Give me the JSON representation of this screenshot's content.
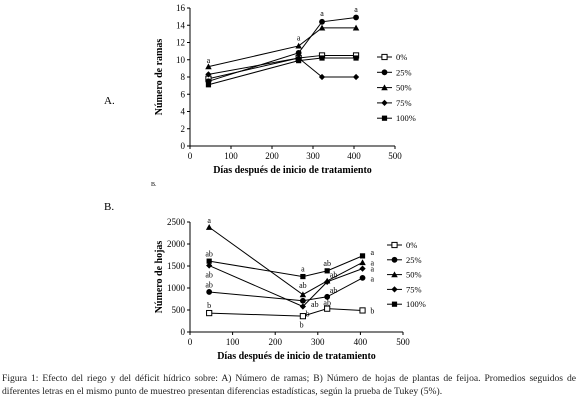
{
  "figure": {
    "caption": "Figura 1: Efecto del riego y del déficit hídrico sobre: A) Número de ramas; B) Número de hojas de plantas de feijoa. Promedios seguidos de diferentes letras en el mismo punto de muestreo presentan diferencias estadísticas, según la prueba de Tukey (5%)."
  },
  "chart_data": [
    {
      "type": "line",
      "panel_label": "A.",
      "xlabel": "Días después de inicio de tratamiento",
      "ylabel": "Número de ramas",
      "xlim": [
        0,
        500
      ],
      "ylim": [
        0,
        16
      ],
      "xticks": [
        0,
        100,
        200,
        300,
        400,
        500
      ],
      "yticks": [
        0,
        2,
        4,
        6,
        8,
        10,
        12,
        14,
        16
      ],
      "grid": false,
      "legend_position": "right",
      "x": [
        45,
        265,
        322,
        405
      ],
      "series": [
        {
          "name": "0%",
          "marker": "square-open",
          "values": [
            7.8,
            10.2,
            10.5,
            10.5
          ]
        },
        {
          "name": "25%",
          "marker": "circle",
          "values": [
            7.5,
            10.8,
            14.4,
            14.9
          ]
        },
        {
          "name": "50%",
          "marker": "triangle",
          "values": [
            9.2,
            11.6,
            13.7,
            13.7
          ]
        },
        {
          "name": "75%",
          "marker": "diamond",
          "values": [
            8.3,
            10.2,
            8.0,
            8.0
          ]
        },
        {
          "name": "100%",
          "marker": "square",
          "values": [
            7.1,
            9.9,
            10.2,
            10.2
          ]
        }
      ],
      "annotations": [
        {
          "text": "a",
          "x": 45,
          "y": 10.0
        },
        {
          "text": "a",
          "x": 265,
          "y": 12.6
        },
        {
          "text": "a",
          "x": 322,
          "y": 15.4
        },
        {
          "text": "a",
          "x": 405,
          "y": 15.9
        }
      ]
    },
    {
      "type": "line",
      "panel_label": "B.",
      "corner_label": "B.",
      "xlabel": "Días después de inicio de tratamiento",
      "ylabel": "Número de hojas",
      "xlim": [
        0,
        500
      ],
      "ylim": [
        0,
        2500
      ],
      "xticks": [
        0,
        100,
        200,
        300,
        400,
        500
      ],
      "yticks": [
        0,
        500,
        1000,
        1500,
        2000,
        2500
      ],
      "grid": false,
      "legend_position": "right",
      "x": [
        45,
        265,
        322,
        405
      ],
      "series": [
        {
          "name": "0%",
          "marker": "square-open",
          "values": [
            430,
            360,
            530,
            490
          ]
        },
        {
          "name": "25%",
          "marker": "circle",
          "values": [
            910,
            710,
            800,
            1230
          ]
        },
        {
          "name": "50%",
          "marker": "triangle",
          "values": [
            2380,
            850,
            1160,
            1580
          ]
        },
        {
          "name": "75%",
          "marker": "diamond",
          "values": [
            1510,
            580,
            1140,
            1440
          ]
        },
        {
          "name": "100%",
          "marker": "square",
          "values": [
            1610,
            1260,
            1390,
            1730
          ]
        }
      ],
      "annotations": [
        {
          "text": "a",
          "x": 45,
          "y": 2540
        },
        {
          "text": "ab",
          "x": 45,
          "y": 1780
        },
        {
          "text": "ab",
          "x": 45,
          "y": 1310
        },
        {
          "text": "ab",
          "x": 45,
          "y": 1080
        },
        {
          "text": "b",
          "x": 45,
          "y": 610
        },
        {
          "text": "a",
          "x": 265,
          "y": 1440
        },
        {
          "text": "ab",
          "x": 265,
          "y": 1070
        },
        {
          "text": "b",
          "x": 276,
          "y": 420
        },
        {
          "text": "b",
          "x": 262,
          "y": 170
        },
        {
          "text": "ab",
          "x": 293,
          "y": 640
        },
        {
          "text": "ab",
          "x": 322,
          "y": 1570
        },
        {
          "text": "ab",
          "x": 337,
          "y": 1310
        },
        {
          "text": "ab",
          "x": 337,
          "y": 950
        },
        {
          "text": "ab",
          "x": 322,
          "y": 670
        },
        {
          "text": "a",
          "x": 428,
          "y": 1820
        },
        {
          "text": "a",
          "x": 428,
          "y": 1580
        },
        {
          "text": "a",
          "x": 428,
          "y": 1440
        },
        {
          "text": "a",
          "x": 428,
          "y": 1220
        },
        {
          "text": "b",
          "x": 428,
          "y": 490
        }
      ]
    }
  ]
}
